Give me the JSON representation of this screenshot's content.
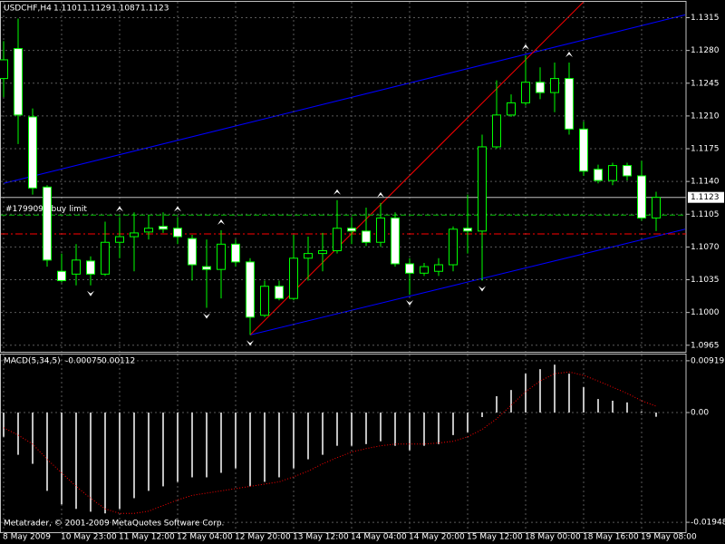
{
  "chart_data": [
    {
      "type": "candlestick",
      "title": "USDCHF,H4",
      "categories": [
        "8 May 2009",
        null,
        null,
        null,
        "10 May 23:00",
        null,
        null,
        null,
        "11 May 12:00",
        null,
        null,
        null,
        "12 May 04:00",
        null,
        null,
        null,
        "12 May 20:00",
        null,
        null,
        null,
        "13 May 12:00",
        null,
        null,
        null,
        "14 May 04:00",
        null,
        null,
        null,
        "14 May 20:00",
        null,
        null,
        null,
        "15 May 12:00",
        null,
        null,
        null,
        "18 May 00:00",
        null,
        null,
        null,
        "18 May 16:00",
        null,
        null,
        null,
        "19 May 08:00",
        null
      ],
      "open": [
        1.125,
        1.1282,
        1.1209,
        1.1134,
        1.1044,
        1.1041,
        1.1055,
        1.1041,
        1.1075,
        1.1081,
        1.1086,
        1.1092,
        1.109,
        1.1079,
        1.1049,
        1.1046,
        1.1073,
        1.1054,
        1.0997,
        1.1028,
        1.1015,
        1.1058,
        1.1063,
        1.1066,
        1.109,
        1.1087,
        1.1075,
        1.1101,
        1.1052,
        1.1042,
        1.1044,
        1.1051,
        1.109,
        1.1087,
        1.1177,
        1.1211,
        1.1224,
        1.1246,
        1.1235,
        1.125,
        1.1196,
        1.1153,
        1.1141,
        1.1157,
        1.1146,
        1.1101
      ],
      "high": [
        1.129,
        1.1314,
        1.1218,
        1.1136,
        1.1063,
        1.1073,
        1.106,
        1.1097,
        1.1102,
        1.1107,
        1.1104,
        1.1107,
        1.1102,
        1.1083,
        1.1078,
        1.1088,
        1.1078,
        1.1058,
        1.1034,
        1.1034,
        1.1083,
        1.1081,
        1.1085,
        1.112,
        1.1102,
        1.1112,
        1.1117,
        1.1107,
        1.1058,
        1.1053,
        1.1058,
        1.1092,
        1.1126,
        1.119,
        1.1248,
        1.1233,
        1.1275,
        1.1262,
        1.1267,
        1.1267,
        1.1204,
        1.1158,
        1.116,
        1.116,
        1.1162,
        1.1129
      ],
      "low": [
        1.123,
        1.118,
        1.1126,
        1.1049,
        1.1032,
        1.1029,
        1.1029,
        1.1039,
        1.1058,
        1.1044,
        1.1078,
        1.1085,
        1.1073,
        1.1034,
        1.1005,
        1.1015,
        1.1049,
        1.0976,
        1.0995,
        1.1013,
        1.1013,
        1.1034,
        1.1044,
        1.1063,
        1.1073,
        1.1071,
        1.107,
        1.1049,
        1.1019,
        1.1039,
        1.1039,
        1.1044,
        1.1063,
        1.1034,
        1.1175,
        1.1209,
        1.1221,
        1.1228,
        1.1214,
        1.119,
        1.1146,
        1.1138,
        1.1136,
        1.1141,
        1.1098,
        1.1087
      ],
      "close": [
        1.127,
        1.1211,
        1.1133,
        1.1056,
        1.1034,
        1.1056,
        1.1041,
        1.1075,
        1.1081,
        1.1085,
        1.109,
        1.1089,
        1.1081,
        1.1051,
        1.1046,
        1.1073,
        1.1054,
        1.0995,
        1.1028,
        1.1015,
        1.1058,
        1.1063,
        1.1066,
        1.109,
        1.1087,
        1.1075,
        1.1101,
        1.1052,
        1.1042,
        1.1049,
        1.1051,
        1.1089,
        1.1087,
        1.1177,
        1.1211,
        1.1224,
        1.1246,
        1.1235,
        1.125,
        1.1196,
        1.1151,
        1.1141,
        1.1157,
        1.1146,
        1.1101,
        1.1123
      ],
      "bull_color": "#000000",
      "bear_color": "#ffffff",
      "outline_color": "#00ff00",
      "ylim": [
        1.0958,
        1.1331
      ],
      "yticks": [
        1.0965,
        {
          "value": 1.1,
          "label": "1.1000"
        },
        1.1035,
        {
          "value": 1.107,
          "label": "1.1070"
        },
        1.1105,
        {
          "value": 1.114,
          "label": "1.1140"
        },
        1.1175,
        {
          "value": 1.121,
          "label": "1.1210"
        },
        1.1245,
        {
          "value": 1.128,
          "label": "1.1280"
        },
        1.1315
      ],
      "grid": true,
      "trendlines": [
        {
          "color": "#0000ff",
          "x": [
            0,
            47
          ],
          "y": [
            1.1138,
            1.1318
          ]
        },
        {
          "color": "#0000ff",
          "x": [
            17,
            47
          ],
          "y": [
            1.0976,
            1.1089
          ]
        },
        {
          "color": "#ff0000",
          "x": [
            17,
            40
          ],
          "y": [
            1.0976,
            1.1332
          ]
        }
      ],
      "levels": [
        {
          "value": 1.1104,
          "color": "#00c000",
          "dash": "dashed"
        },
        {
          "value": 1.1084,
          "color": "#ff0000",
          "dash": "dashdot"
        }
      ],
      "order_label": "#1799091 buy limit",
      "up_fractals": [
        8,
        12,
        15,
        23,
        26,
        36,
        39
      ],
      "down_fractals": [
        6,
        14,
        17,
        28,
        33
      ]
    },
    {
      "type": "macd",
      "title": "MACD(5,34,5)",
      "series": [
        {
          "style": "histogram",
          "color": "#c0c0c0",
          "values": [
            -0.0043,
            -0.0075,
            -0.0091,
            -0.0139,
            -0.0163,
            -0.0171,
            -0.0176,
            -0.0179,
            -0.0171,
            -0.0152,
            -0.0139,
            -0.0131,
            -0.0123,
            -0.0115,
            -0.0115,
            -0.0107,
            -0.0099,
            -0.0131,
            -0.0123,
            -0.0115,
            -0.0099,
            -0.0083,
            -0.0075,
            -0.0059,
            -0.0059,
            -0.0056,
            -0.0051,
            -0.0059,
            -0.0067,
            -0.0059,
            -0.0056,
            -0.004,
            -0.0035,
            -0.0008,
            0.0029,
            0.004,
            0.0069,
            0.0077,
            0.0085,
            0.0069,
            0.0045,
            0.0024,
            0.0021,
            0.0018,
            0.0002,
            -0.00075
          ]
        },
        {
          "style": "dotted",
          "color": "#ff0000",
          "values": [
            -0.0027,
            -0.004,
            -0.0056,
            -0.0083,
            -0.0107,
            -0.0131,
            -0.0152,
            -0.0171,
            -0.0179,
            -0.0179,
            -0.0175,
            -0.0165,
            -0.0155,
            -0.0147,
            -0.0143,
            -0.0139,
            -0.0135,
            -0.0131,
            -0.0127,
            -0.0123,
            -0.0114,
            -0.0104,
            -0.0091,
            -0.008,
            -0.007,
            -0.0064,
            -0.0059,
            -0.0056,
            -0.0056,
            -0.0056,
            -0.0054,
            -0.0051,
            -0.0043,
            -0.003,
            -0.0011,
            0.0013,
            0.0037,
            0.0056,
            0.0069,
            0.0072,
            0.0066,
            0.0056,
            0.0045,
            0.0034,
            0.0021,
            0.00112
          ]
        }
      ],
      "ylim": [
        -0.0214,
        0.0103
      ],
      "yticks": [
        0.00919,
        {
          "value": 0,
          "label": "0.00"
        },
        -0.01948
      ],
      "grid": true
    }
  ],
  "footer": "Metatrader, © 2001-2009 MetaQuotes Software Corp."
}
